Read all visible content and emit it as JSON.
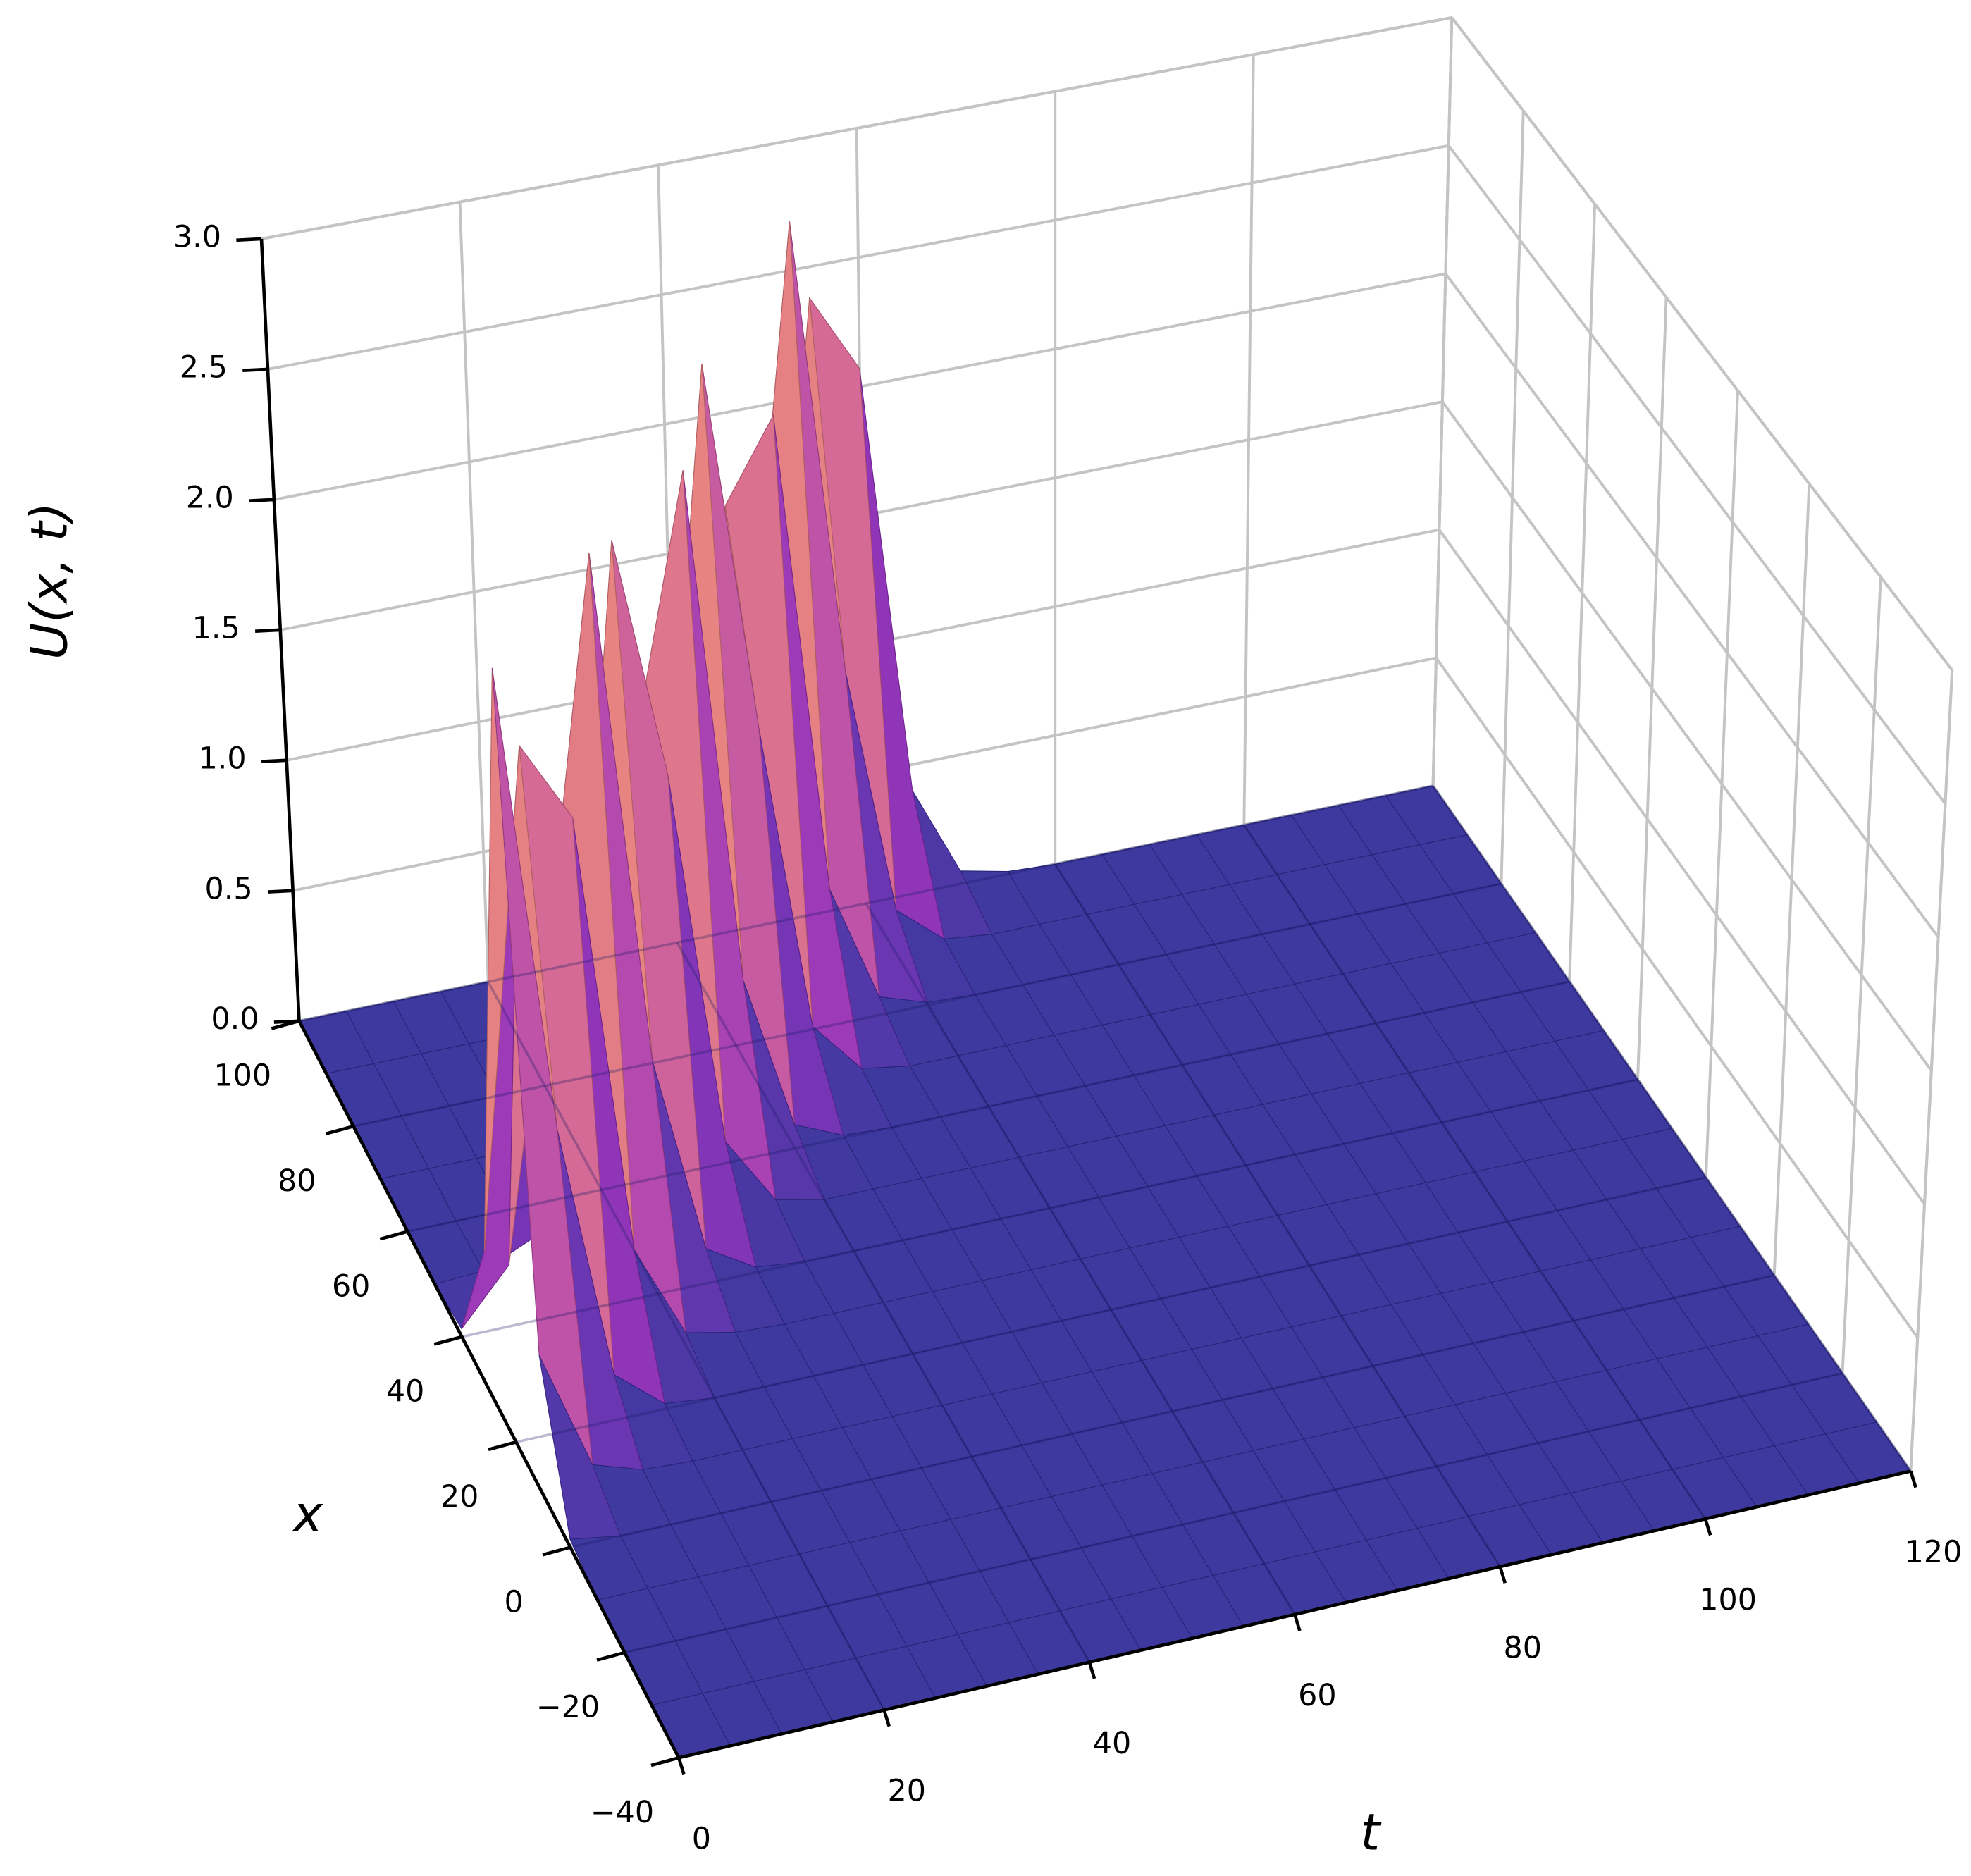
{
  "chart_data": {
    "type": "surface",
    "t_label": "t",
    "x_label": "x",
    "z_label": "U(x, t)",
    "colormap": "plasma",
    "t": [
      0,
      5,
      10,
      15,
      20,
      25,
      30,
      35,
      40,
      45,
      50,
      55,
      60,
      65,
      70,
      75,
      80,
      85,
      90,
      95,
      100,
      105,
      110,
      115,
      120
    ],
    "x": [
      -40,
      -30,
      -20,
      -10,
      0,
      10,
      20,
      30,
      40,
      50,
      60,
      70,
      80,
      90,
      100
    ],
    "z": [
      [
        0,
        0,
        0,
        0,
        0,
        0,
        0,
        0,
        0,
        0,
        0,
        0,
        0,
        0,
        0,
        0,
        0,
        0,
        0,
        0,
        0,
        0,
        0,
        0,
        0
      ],
      [
        0,
        0,
        0,
        0,
        0,
        0,
        0,
        0,
        0,
        0,
        0,
        0,
        0,
        0,
        0,
        0,
        0,
        0,
        0,
        0,
        0,
        0,
        0,
        0,
        0
      ],
      [
        0,
        0,
        0,
        0,
        0,
        0,
        0,
        0,
        0,
        0,
        0,
        0,
        0,
        0,
        0,
        0,
        0,
        0,
        0,
        0,
        0,
        0,
        0,
        0,
        0
      ],
      [
        0,
        0,
        0,
        0,
        0,
        0,
        0,
        0,
        0,
        0,
        0,
        0,
        0,
        0,
        0,
        0,
        0,
        0,
        0,
        0,
        0,
        0,
        0,
        0,
        0
      ],
      [
        0.03,
        0,
        0,
        0,
        0,
        0,
        0,
        0,
        0,
        0,
        0,
        0,
        0,
        0,
        0,
        0,
        0,
        0,
        0,
        0,
        0,
        0,
        0,
        0,
        0
      ],
      [
        0.52,
        0.07,
        0.01,
        0,
        0,
        0,
        0,
        0,
        0,
        0,
        0,
        0,
        0,
        0,
        0,
        0,
        0,
        0,
        0,
        0,
        0,
        0,
        0,
        0,
        0
      ],
      [
        2.9,
        1.13,
        0.17,
        0.02,
        0,
        0,
        0,
        0,
        0,
        0,
        0,
        0,
        0,
        0,
        0,
        0,
        0,
        0,
        0,
        0,
        0,
        0,
        0,
        0,
        0
      ],
      [
        0.52,
        2.38,
        2.07,
        0.4,
        0.05,
        0.01,
        0,
        0,
        0,
        0,
        0,
        0,
        0,
        0,
        0,
        0,
        0,
        0,
        0,
        0,
        0,
        0,
        0,
        0,
        0
      ],
      [
        0.03,
        0.23,
        1.41,
        2.84,
        0.88,
        0.13,
        0.02,
        0,
        0,
        0,
        0,
        0,
        0,
        0,
        0,
        0,
        0,
        0,
        0,
        0,
        0,
        0,
        0,
        0,
        0
      ],
      [
        0,
        0.01,
        0.09,
        0.68,
        2.66,
        1.73,
        0.3,
        0.04,
        0,
        0,
        0,
        0,
        0,
        0,
        0,
        0,
        0,
        0,
        0,
        0,
        0,
        0,
        0,
        0,
        0
      ],
      [
        0,
        0,
        0,
        0.04,
        0.3,
        1.73,
        2.66,
        0.68,
        0.09,
        0.01,
        0,
        0,
        0,
        0,
        0,
        0,
        0,
        0,
        0,
        0,
        0,
        0,
        0,
        0,
        0
      ],
      [
        0,
        0,
        0,
        0,
        0.02,
        0.13,
        0.88,
        2.84,
        1.41,
        0.23,
        0.03,
        0,
        0,
        0,
        0,
        0,
        0,
        0,
        0,
        0,
        0,
        0,
        0,
        0,
        0
      ],
      [
        0,
        0,
        0,
        0,
        0,
        0.01,
        0.05,
        0.4,
        2.07,
        2.38,
        0.52,
        0.07,
        0.01,
        0,
        0,
        0,
        0,
        0,
        0,
        0,
        0,
        0,
        0,
        0,
        0
      ],
      [
        0,
        0,
        0,
        0,
        0,
        0,
        0,
        0.02,
        0.17,
        1.13,
        2.9,
        1.13,
        0.17,
        0.02,
        0,
        0,
        0,
        0,
        0,
        0,
        0,
        0,
        0,
        0,
        0
      ],
      [
        0,
        0,
        0,
        0,
        0,
        0,
        0,
        0,
        0.01,
        0.07,
        0.52,
        2.38,
        2.07,
        0.4,
        0.05,
        0.01,
        0,
        0,
        0,
        0,
        0,
        0,
        0,
        0,
        0
      ]
    ],
    "tlim": [
      0,
      120
    ],
    "tticks": [
      0,
      20,
      40,
      60,
      80,
      100,
      120
    ],
    "xlim": [
      -40,
      100
    ],
    "xticks": [
      {
        "value": -40,
        "label": "−40"
      },
      {
        "value": -20,
        "label": "−20"
      },
      0,
      20,
      40,
      60,
      80,
      100
    ],
    "zlim": [
      0,
      3
    ],
    "zticks": [
      {
        "value": 0,
        "label": "0.0"
      },
      0.5,
      {
        "value": 1,
        "label": "1.0"
      },
      1.5,
      {
        "value": 2,
        "label": "2.0"
      },
      2.5,
      {
        "value": 3,
        "label": "3.0"
      }
    ],
    "grid": true
  }
}
